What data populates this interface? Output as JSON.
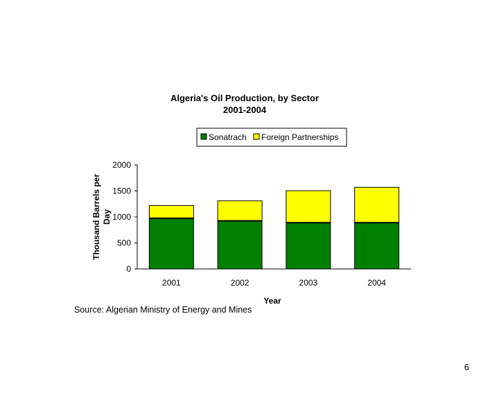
{
  "slide": {
    "source_text": "Source: Algerian Ministry of Energy and Mines",
    "page_number": "6"
  },
  "chart_data": {
    "type": "bar",
    "stacked": true,
    "title": "Algeria's Oil Production, by Sector",
    "subtitle": "2001-2004",
    "xlabel": "Year",
    "ylabel": "Thousand Barrels per Day",
    "categories": [
      "2001",
      "2002",
      "2003",
      "2004"
    ],
    "series": [
      {
        "name": "Sonatrach",
        "color": "#008000",
        "values": [
          975,
          925,
          890,
          890
        ]
      },
      {
        "name": "Foreign Partnerships",
        "color": "#ffff00",
        "values": [
          245,
          385,
          615,
          680
        ]
      }
    ],
    "ylim": [
      0,
      2000
    ],
    "yticks": [
      0,
      500,
      1000,
      1500,
      2000
    ],
    "grid": false,
    "legend_position": "top"
  }
}
